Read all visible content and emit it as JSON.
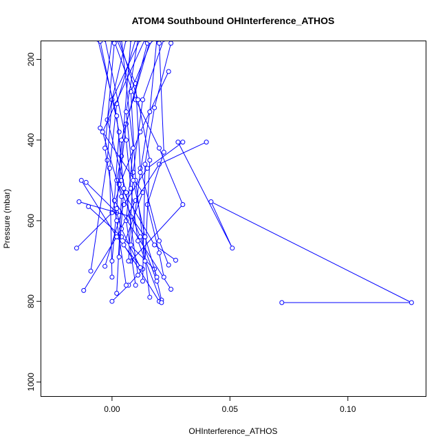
{
  "chart_data": {
    "type": "line",
    "title": "ATOM4 Southbound OHInterference_ATHOS",
    "xlabel": "OHInterference_ATHOS",
    "ylabel": "Pressure (mbar)",
    "xlim": [
      -0.03,
      0.133
    ],
    "ylim": [
      1035,
      155
    ],
    "y_reversed": true,
    "x_ticks": [
      0.0,
      0.05,
      0.1
    ],
    "x_tick_labels": [
      "0.00",
      "0.05",
      "0.10"
    ],
    "y_ticks": [
      200,
      400,
      600,
      800,
      1000
    ],
    "y_tick_labels": [
      "200",
      "400",
      "600",
      "800",
      "1000"
    ],
    "grid": false,
    "legend": "none",
    "series_color": "#0000ff",
    "marker": "open-circle",
    "series": [
      {
        "x": [
          0.0,
          0.007,
          0.013,
          0.002,
          -0.013
        ],
        "y": [
          800,
          760,
          720,
          640,
          500
        ]
      },
      {
        "x": [
          0.0,
          0.01,
          0.02,
          0.03,
          0.008
        ],
        "y": [
          140,
          300,
          420,
          560,
          700
        ]
      },
      {
        "x": [
          0.072,
          0.127,
          0.042,
          0.051,
          0.028
        ],
        "y": [
          803,
          803,
          553,
          668,
          405
        ]
      },
      {
        "x": [
          0.0,
          -0.005,
          0.013,
          0.005,
          0.02
        ],
        "y": [
          150,
          370,
          530,
          660,
          800
        ]
      },
      {
        "x": [
          0.024,
          0.012,
          0.004,
          0.0,
          -0.015
        ],
        "y": [
          230,
          380,
          500,
          580,
          668
        ]
      },
      {
        "x": [
          0.04,
          0.02,
          0.01,
          0.002,
          -0.012
        ],
        "y": [
          405,
          460,
          550,
          640,
          773
        ]
      },
      {
        "x": [
          0.03,
          0.015,
          0.005,
          -0.003
        ],
        "y": [
          405,
          470,
          560,
          713
        ]
      },
      {
        "x": [
          -0.01,
          0.004,
          0.018,
          0.021
        ],
        "y": [
          565,
          640,
          720,
          797
        ]
      },
      {
        "x": [
          0.012,
          0.0,
          -0.002,
          -0.009
        ],
        "y": [
          150,
          300,
          450,
          725
        ]
      },
      {
        "x": [
          0.017,
          0.008,
          0.01,
          0.016
        ],
        "y": [
          150,
          280,
          500,
          790
        ]
      },
      {
        "x": [
          0.025,
          0.018,
          0.014,
          0.013
        ],
        "y": [
          160,
          320,
          460,
          750
        ]
      },
      {
        "x": [
          0.004,
          0.009,
          0.006,
          0.01
        ],
        "y": [
          150,
          420,
          600,
          760
        ]
      },
      {
        "x": [
          -0.005,
          0.003,
          0.001,
          0.025
        ],
        "y": [
          155,
          380,
          550,
          770
        ]
      },
      {
        "x": [
          0.02,
          0.022,
          0.015,
          0.02,
          0.022
        ],
        "y": [
          160,
          430,
          560,
          680,
          740
        ]
      },
      {
        "x": [
          -0.003,
          0.006,
          0.008,
          0.011,
          0.021
        ],
        "y": [
          150,
          400,
          520,
          650,
          803
        ]
      },
      {
        "x": [
          0.002,
          0.01,
          0.012,
          0.02,
          0.024
        ],
        "y": [
          150,
          260,
          470,
          650,
          710
        ]
      },
      {
        "x": [
          0.008,
          0.004,
          0.002,
          0.012,
          0.019
        ],
        "y": [
          150,
          440,
          500,
          640,
          750
        ]
      },
      {
        "x": [
          0.015,
          0.006,
          0.003,
          0.018,
          0.027
        ],
        "y": [
          160,
          360,
          510,
          660,
          698
        ]
      },
      {
        "x": [
          -0.011,
          0.002,
          0.004,
          0.012
        ],
        "y": [
          505,
          580,
          620,
          716
        ]
      },
      {
        "x": [
          -0.014,
          0.008,
          0.014,
          0.019
        ],
        "y": [
          553,
          590,
          640,
          740
        ]
      },
      {
        "x": [
          0.006,
          -0.002,
          0.006,
          0.011
        ],
        "y": [
          150,
          350,
          530,
          735
        ]
      },
      {
        "x": [
          0.01,
          0.002,
          -0.001,
          0.0
        ],
        "y": [
          150,
          310,
          470,
          740
        ]
      },
      {
        "x": [
          0.022,
          0.013,
          0.009,
          0.007
        ],
        "y": [
          150,
          300,
          480,
          700
        ]
      },
      {
        "x": [
          0.003,
          0.011,
          0.016,
          0.014
        ],
        "y": [
          150,
          300,
          450,
          700
        ]
      },
      {
        "x": [
          0.014,
          -0.004,
          0.004,
          0.002
        ],
        "y": [
          150,
          380,
          540,
          780
        ]
      },
      {
        "x": [
          0.019,
          0.016,
          0.012,
          0.008
        ],
        "y": [
          150,
          330,
          480,
          660
        ]
      },
      {
        "x": [
          -0.006,
          0.002,
          0.005,
          0.003
        ],
        "y": [
          150,
          340,
          520,
          690
        ]
      },
      {
        "x": [
          0.016,
          0.004,
          0.002,
          0.0
        ],
        "y": [
          155,
          400,
          570,
          700
        ]
      },
      {
        "x": [
          0.011,
          0.006,
          0.009,
          0.014
        ],
        "y": [
          150,
          330,
          500,
          640
        ]
      },
      {
        "x": [
          0.001,
          -0.003,
          0.002,
          0.006
        ],
        "y": [
          160,
          420,
          600,
          760
        ]
      }
    ]
  }
}
